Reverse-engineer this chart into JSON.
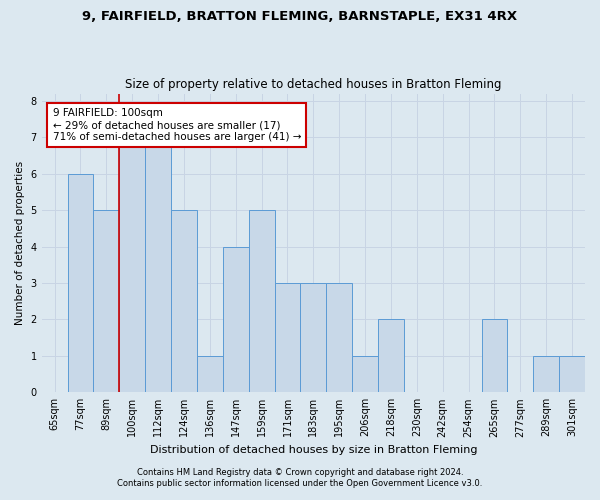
{
  "title1": "9, FAIRFIELD, BRATTON FLEMING, BARNSTAPLE, EX31 4RX",
  "title2": "Size of property relative to detached houses in Bratton Fleming",
  "xlabel": "Distribution of detached houses by size in Bratton Fleming",
  "ylabel": "Number of detached properties",
  "footnote1": "Contains HM Land Registry data © Crown copyright and database right 2024.",
  "footnote2": "Contains public sector information licensed under the Open Government Licence v3.0.",
  "categories": [
    "65sqm",
    "77sqm",
    "89sqm",
    "100sqm",
    "112sqm",
    "124sqm",
    "136sqm",
    "147sqm",
    "159sqm",
    "171sqm",
    "183sqm",
    "195sqm",
    "206sqm",
    "218sqm",
    "230sqm",
    "242sqm",
    "254sqm",
    "265sqm",
    "277sqm",
    "289sqm",
    "301sqm"
  ],
  "values": [
    0,
    6,
    5,
    7,
    7,
    5,
    1,
    4,
    5,
    3,
    3,
    3,
    1,
    2,
    0,
    0,
    0,
    2,
    0,
    1,
    1
  ],
  "bar_color": "#c8d8e8",
  "bar_edge_color": "#5b9bd5",
  "highlight_index": 3,
  "highlight_line_color": "#cc0000",
  "annotation_text": "9 FAIRFIELD: 100sqm\n← 29% of detached houses are smaller (17)\n71% of semi-detached houses are larger (41) →",
  "annotation_box_color": "#ffffff",
  "annotation_box_edge_color": "#cc0000",
  "ylim": [
    0,
    8.2
  ],
  "yticks": [
    0,
    1,
    2,
    3,
    4,
    5,
    6,
    7,
    8
  ],
  "grid_color": "#c8d4e4",
  "bg_color": "#dce8f0",
  "title1_fontsize": 9.5,
  "title2_fontsize": 8.5,
  "xlabel_fontsize": 8,
  "ylabel_fontsize": 7.5,
  "tick_fontsize": 7,
  "annotation_fontsize": 7.5,
  "footnote_fontsize": 6
}
